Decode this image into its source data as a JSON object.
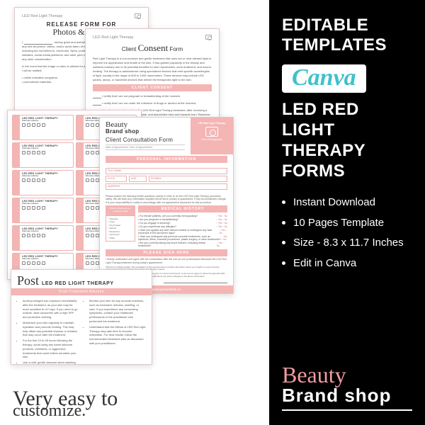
{
  "sidebar": {
    "heading1": "EDITABLE TEMPLATES",
    "canva": "Canva",
    "heading2": "LED RED LIGHT THERAPY FORMS",
    "bullets": [
      "Instant Download",
      "10 Pages Template",
      "Size - 8.3 x 11.7 Inches",
      "Edit in Canva"
    ],
    "logo_script": "Beauty",
    "logo_block": "Brand shop"
  },
  "p1": {
    "hdr": "LED Red Light Therapy",
    "title": "RELEASE FORM FOR",
    "script": "Photos & Videos",
    "para1": "I, ______________, hereby grant and authorize ______________ the right to have any and all photos, videos, and/or audio taken of me used in any and all promotional materials, including but not limited to, brochures, flyers, posters, newsletters, advertisements, press kits, websites, social media platforms, and other print or digital communications, without payment or any other consideration.",
    "para2": "In the event that the image or video is utilized for an objective other than those detailed below, I will be notified:",
    "list": [
      "online education programs;",
      "promotional materials;"
    ]
  },
  "p2": {
    "hdr": "LED Red Light Therapy",
    "title_a": "Client",
    "title_b": "Consent",
    "title_c": "Form",
    "intro": "Red Light Therapy is a non-invasive and gentle treatment that uses red or near-infrared light to improve the appearance and health of the skin. It has gained popularity in the beauty and wellness industry due to its potential benefits for skin rejuvenation, acne treatment, and wound healing. The therapy is administered using specialized devices that emit specific wavelengths of light, usually in the range of 600 to 1000 nanometers. These devices may include LED panels, lamps, or handheld devices that deliver the therapeutic light to the skin.",
    "sec": "CLIENT CONSENT",
    "c1": "I certify that I am not pregnant or breastfeeding at the moment.",
    "c2": "I certify that I am not under the influence of drugs or alcohol at the moment.",
    "c3": "I hereby consent to undergo the LED Red Light Therapy treatment, after receiving a thorough explanation of its nature, purpose, and associated risks and hazards from \"Business Name\"."
  },
  "p3": {
    "card_title": "LED RED LIGHT THERAPY",
    "card_sub": "Aftercare Advices"
  },
  "p4": {
    "brand1": "Beauty",
    "brand2": "Brand shop",
    "title": "Client Consultation Form",
    "meta": "Date of Appointment:                    Time of Appointment:",
    "tr1": "LED Red Light Therapy",
    "tr2": "Client Photography",
    "sec1": "PERSONAL INFORMATION",
    "f_full": "FULL NAME:",
    "f_dob": "D.O.B:",
    "f_age": "AGE:",
    "f_phone": "PHONE#:",
    "f_addr": "ADDRESS:",
    "intro": "Please answer the following health questions openly in order to do the LED Red Light Therapy procedure safely. We will keep any information supplied secret since privacy is guaranteed. If any circumstances change, it is your responsibility to notify us accordingly after an appointment scheduled for this procedure.",
    "sec2": "MEDICAL HISTORY",
    "sidebox_t": "What products are you currently using?",
    "sidebox_items": [
      "Cleanser",
      "Toner",
      "Dry Powder",
      "Retinol",
      "Moisturizer",
      "Sunscreen",
      "Other"
    ],
    "q": [
      "For female patients, are you currently menopausing?",
      "Are you pregnant or breastfeeding?",
      "Do you engage in smoking?",
      "Do you experience any allergies?",
      "Have you applied any face retinoid creams or undergone any face procedure in the last seven days?",
      "Have you undergone any previous cosmetic treatments, such as injections, fillers, cosmetic procedures, plastic surgery, or other treatments?",
      "Are you currently taking any blood thinners, including herbal treatments?"
    ],
    "opt": "○ Yes   ○ No",
    "sec3": "PLEASE SIGN HERE",
    "sig_intro": "I hereby understand and agree with the consultation after the one-on-one professional discussed the LED Red Light Therapy treatment during today's appointment.",
    "sig_sm": "This form is strictly private. The completion of this questionnaire provides information about your health to ensure that the treatment provided is performed in a safe and effective manner.",
    "sig_sm2": "To the best of my knowledge, the information I have given is correct and honest. In the event I agree to follow through with LED Red Light Therapy Treatment I agree to notify the staff about any future changes to the above information.",
    "s1": "Date:",
    "s2": "Client Signature:",
    "s3": "Therapist Signature:",
    "foot": "www.yourwebsite.co"
  },
  "p5": {
    "post": "Post",
    "title": "LED RED LIGHT THERAPY",
    "sub": "Post-Treatment Advices",
    "col1": [
      "Avoid prolonged sun exposure immediately after the treatment, as your skin may be more sensitive to UV rays. If you need to go outside, wear sunscreen with a high SPF and protective clothing.",
      "Moisturize your skin regularly to maintain hydration and promote healing. This may help offset any potential dryness or irritation that may occur after the treatment.",
      "For the first 24 to 48 hours following the therapy, avoid using any harsh skincare products, exfoliants, or aggressive treatments that could further sensitize your skin.",
      "Use a mild, gentle cleanser when washing your face to avoid any potential irritation."
    ],
    "col2": [
      "Monitor your skin for any unusual reactions, such as excessive redness, swelling, or rash. If you experience any concerning symptoms, contact your healthcare professional or the practitioner who performed the treatment.",
      "Understand that the effects of LED Red Light Therapy may take time to become noticeable. For best results, follow the recommended treatment plan as discussed with your practitioner."
    ]
  },
  "tagline1": "Very easy to",
  "tagline2": "customize."
}
